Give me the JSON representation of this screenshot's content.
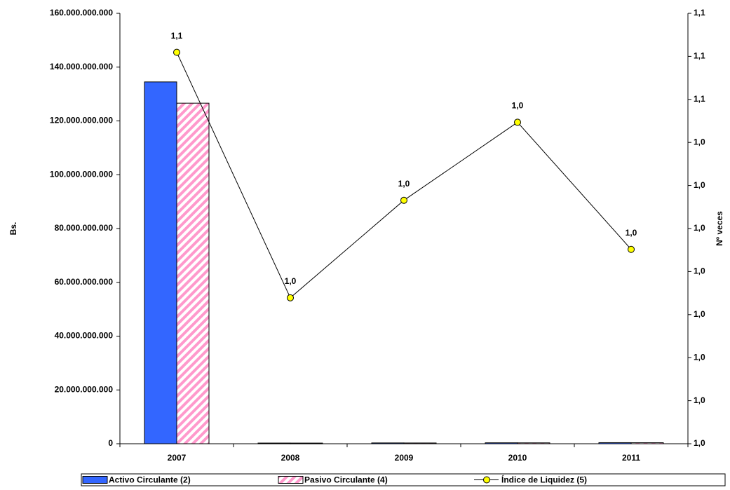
{
  "chart_data": {
    "type": "bar",
    "y_label": "Bs.",
    "y2_label": "Nº veces",
    "categories": [
      "2007",
      "2008",
      "2009",
      "2010",
      "2011"
    ],
    "series": [
      {
        "name": "Activo Circulante (2)",
        "color": "#3366ff",
        "values": [
          134500000000,
          250000000,
          300000000,
          350000000,
          400000000
        ]
      },
      {
        "name": "Pasivo Circulante (4)",
        "color": "#ff99cc",
        "pattern": "diagonal-stripes",
        "values": [
          126600000000,
          240000000,
          280000000,
          330000000,
          380000000
        ]
      },
      {
        "name": "Índice de Liquidez (5)",
        "type": "line",
        "axis": "y2",
        "color": "#000000",
        "marker_color": "#ffff00",
        "values": [
          1.0582,
          1.0217,
          1.0362,
          1.0478,
          1.0289
        ],
        "value_labels": [
          "1,1",
          "1,0",
          "1,0",
          "1,0",
          "1,0"
        ]
      }
    ],
    "ylim": [
      0,
      160000000000
    ],
    "yticks": [
      {
        "value": 0,
        "label": "0"
      },
      {
        "value": 20000000000,
        "label": "20.000.000.000"
      },
      {
        "value": 40000000000,
        "label": "40.000.000.000"
      },
      {
        "value": 60000000000,
        "label": "60.000.000.000"
      },
      {
        "value": 80000000000,
        "label": "80.000.000.000"
      },
      {
        "value": 100000000000,
        "label": "100.000.000.000"
      },
      {
        "value": 120000000000,
        "label": "120.000.000.000"
      },
      {
        "value": 140000000000,
        "label": "140.000.000.000"
      },
      {
        "value": 160000000000,
        "label": "160.000.000.000"
      }
    ],
    "y2lim": [
      1.0,
      1.064
    ],
    "y2ticks": [
      {
        "value": 1.0,
        "label": "1,0"
      },
      {
        "value": 1.0064,
        "label": "1,0"
      },
      {
        "value": 1.0128,
        "label": "1,0"
      },
      {
        "value": 1.0192,
        "label": "1,0"
      },
      {
        "value": 1.0256,
        "label": "1,0"
      },
      {
        "value": 1.032,
        "label": "1,0"
      },
      {
        "value": 1.0384,
        "label": "1,0"
      },
      {
        "value": 1.0448,
        "label": "1,0"
      },
      {
        "value": 1.0512,
        "label": "1,1"
      },
      {
        "value": 1.0576,
        "label": "1,1"
      },
      {
        "value": 1.064,
        "label": "1,1"
      }
    ],
    "grid": false,
    "legend": "bottom"
  }
}
